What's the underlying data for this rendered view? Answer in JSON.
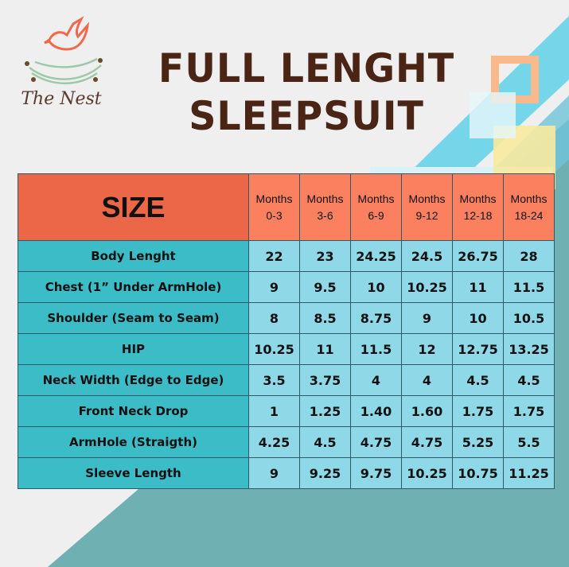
{
  "brand": {
    "name": "The Nest",
    "colors": {
      "bird": "#f0694b",
      "nest": "#9cc9a8",
      "text": "#5a3a2a"
    }
  },
  "title": {
    "line1": "FULL LENGHT",
    "line2": "SLEEPSUIT"
  },
  "table": {
    "size_header": "SIZE",
    "columns": [
      {
        "line1": "Months",
        "line2": "0-3"
      },
      {
        "line1": "Months",
        "line2": "3-6"
      },
      {
        "line1": "Months",
        "line2": "6-9"
      },
      {
        "line1": "Months",
        "line2": "9-12"
      },
      {
        "line1": "Months",
        "line2": "12-18"
      },
      {
        "line1": "Months",
        "line2": "18-24"
      }
    ],
    "rows": [
      {
        "label": "Body Lenght",
        "values": [
          "22",
          "23",
          "24.25",
          "24.5",
          "26.75",
          "28"
        ]
      },
      {
        "label": "Chest (1” Under ArmHole)",
        "values": [
          "9",
          "9.5",
          "10",
          "10.25",
          "11",
          "11.5"
        ]
      },
      {
        "label": "Shoulder (Seam to Seam)",
        "values": [
          "8",
          "8.5",
          "8.75",
          "9",
          "10",
          "10.5"
        ]
      },
      {
        "label": "HIP",
        "values": [
          "10.25",
          "11",
          "11.5",
          "12",
          "12.75",
          "13.25"
        ]
      },
      {
        "label": "Neck Width (Edge to Edge)",
        "values": [
          "3.5",
          "3.75",
          "4",
          "4",
          "4.5",
          "4.5"
        ]
      },
      {
        "label": "Front Neck Drop",
        "values": [
          "1",
          "1.25",
          "1.40",
          "1.60",
          "1.75",
          "1.75"
        ]
      },
      {
        "label": "ArmHole (Straigth)",
        "values": [
          "4.25",
          "4.5",
          "4.75",
          "4.75",
          "5.25",
          "5.5"
        ]
      },
      {
        "label": "Sleeve Length",
        "values": [
          "9",
          "9.25",
          "9.75",
          "10.25",
          "10.75",
          "11.25"
        ]
      }
    ]
  },
  "colors": {
    "background": "#efefef",
    "teal": "#6fb0b3",
    "size_header": "#ec6748",
    "month_header": "#fb8060",
    "label_cell": "#3bbcc7",
    "value_cell": "#8ed8e8",
    "title": "#4a2414"
  }
}
